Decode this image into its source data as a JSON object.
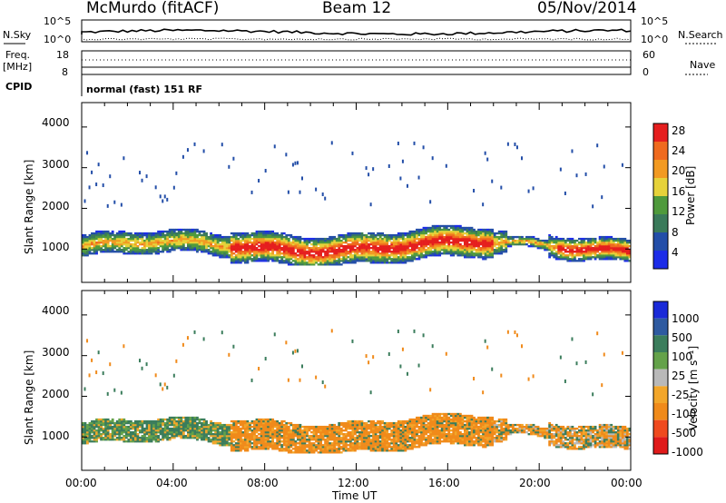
{
  "header": {
    "station": "McMurdo (fitACF)",
    "beam": "Beam 12",
    "date": "05/Nov/2014"
  },
  "status_strip": {
    "nsky_label": "N.Sky",
    "nsearch_label": "N.Search",
    "left_ticks": [
      "10^5",
      "10^0"
    ],
    "right_ticks": [
      "10^5",
      "10^0"
    ],
    "freq_label": "Freq.",
    "freq_unit": "[MHz]",
    "freq_ticks": [
      "18",
      "8"
    ],
    "nave_label": "Nave",
    "nave_ticks": [
      "60",
      "0"
    ],
    "cpid_label": "CPID",
    "cpid_value": "normal (fast) 151 RF"
  },
  "x_axis": {
    "label": "Time UT",
    "ticks": [
      "00:00",
      "04:00",
      "08:00",
      "12:00",
      "16:00",
      "20:00",
      "00:00"
    ]
  },
  "chart_data": [
    {
      "type": "heatmap",
      "panel": "power",
      "ylabel": "Slant Range [km]",
      "ylim": [
        180,
        4600
      ],
      "yticks": [
        1000,
        2000,
        3000,
        4000
      ],
      "xlim_hours": [
        0,
        24
      ],
      "colorbar": {
        "label": "Power [dB]",
        "range": [
          0,
          32
        ],
        "ticks": [
          4,
          8,
          12,
          16,
          20,
          24,
          28
        ],
        "colors": [
          "#1c2ce8",
          "#234ea8",
          "#3a7a5a",
          "#4f9a3c",
          "#e6d23a",
          "#f29a22",
          "#ef6a1e",
          "#e51e1e"
        ]
      },
      "features": [
        {
          "name": "main scatter band",
          "time_hours": [
            0.0,
            24.0
          ],
          "range_km": [
            700,
            1500
          ],
          "peak_db": 28
        },
        {
          "name": "strong echo region",
          "time_hours": [
            6.5,
            18.0
          ],
          "range_km": [
            700,
            1300
          ],
          "peak_db": 30
        }
      ]
    },
    {
      "type": "heatmap",
      "panel": "velocity",
      "ylabel": "Slant Range [km]",
      "ylim": [
        180,
        4600
      ],
      "yticks": [
        1000,
        2000,
        3000,
        4000
      ],
      "xlim_hours": [
        0,
        24
      ],
      "colorbar": {
        "label": "Velocity [m s⁻¹]",
        "ticks": [
          "1000",
          "500",
          "100",
          "25",
          "-25",
          "-100",
          "-500",
          "-1000"
        ],
        "colors": [
          "#1a2ad8",
          "#2e5aa0",
          "#3b7d5c",
          "#64a24a",
          "#b9b9b9",
          "#f2a62a",
          "#f08a1a",
          "#ef4a1e",
          "#e01a1a"
        ]
      },
      "features": [
        {
          "name": "main band",
          "time_hours": [
            0.0,
            24.0
          ],
          "range_km": [
            700,
            1500
          ],
          "dominant_velocity": "-100 to -500"
        }
      ]
    }
  ]
}
